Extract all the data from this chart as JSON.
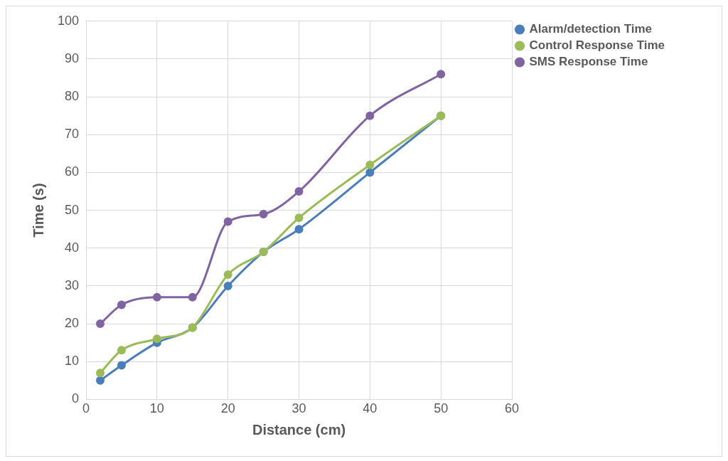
{
  "chart_data": {
    "type": "line",
    "xlabel": "Distance (cm)",
    "ylabel": "Time (s)",
    "x": [
      2,
      5,
      10,
      15,
      20,
      25,
      30,
      40,
      50
    ],
    "series": [
      {
        "name": "Alarm/detection Time",
        "color": "#4a7ebb",
        "values": [
          5,
          9,
          15,
          19,
          30,
          39,
          45,
          60,
          75
        ]
      },
      {
        "name": "Control Response Time",
        "color": "#9bbb59",
        "values": [
          7,
          13,
          16,
          19,
          33,
          39,
          48,
          62,
          75
        ]
      },
      {
        "name": "SMS Response Time",
        "color": "#8064a2",
        "values": [
          20,
          25,
          27,
          27,
          47,
          49,
          55,
          75,
          86
        ]
      }
    ],
    "xlim": [
      0,
      60
    ],
    "xticks": [
      0,
      10,
      20,
      30,
      40,
      50,
      60
    ],
    "ylim": [
      0,
      100
    ],
    "yticks": [
      0,
      10,
      20,
      30,
      40,
      50,
      60,
      70,
      80,
      90,
      100
    ],
    "grid": true,
    "legend": "top right",
    "marker": "circle",
    "line_style": "solid"
  }
}
